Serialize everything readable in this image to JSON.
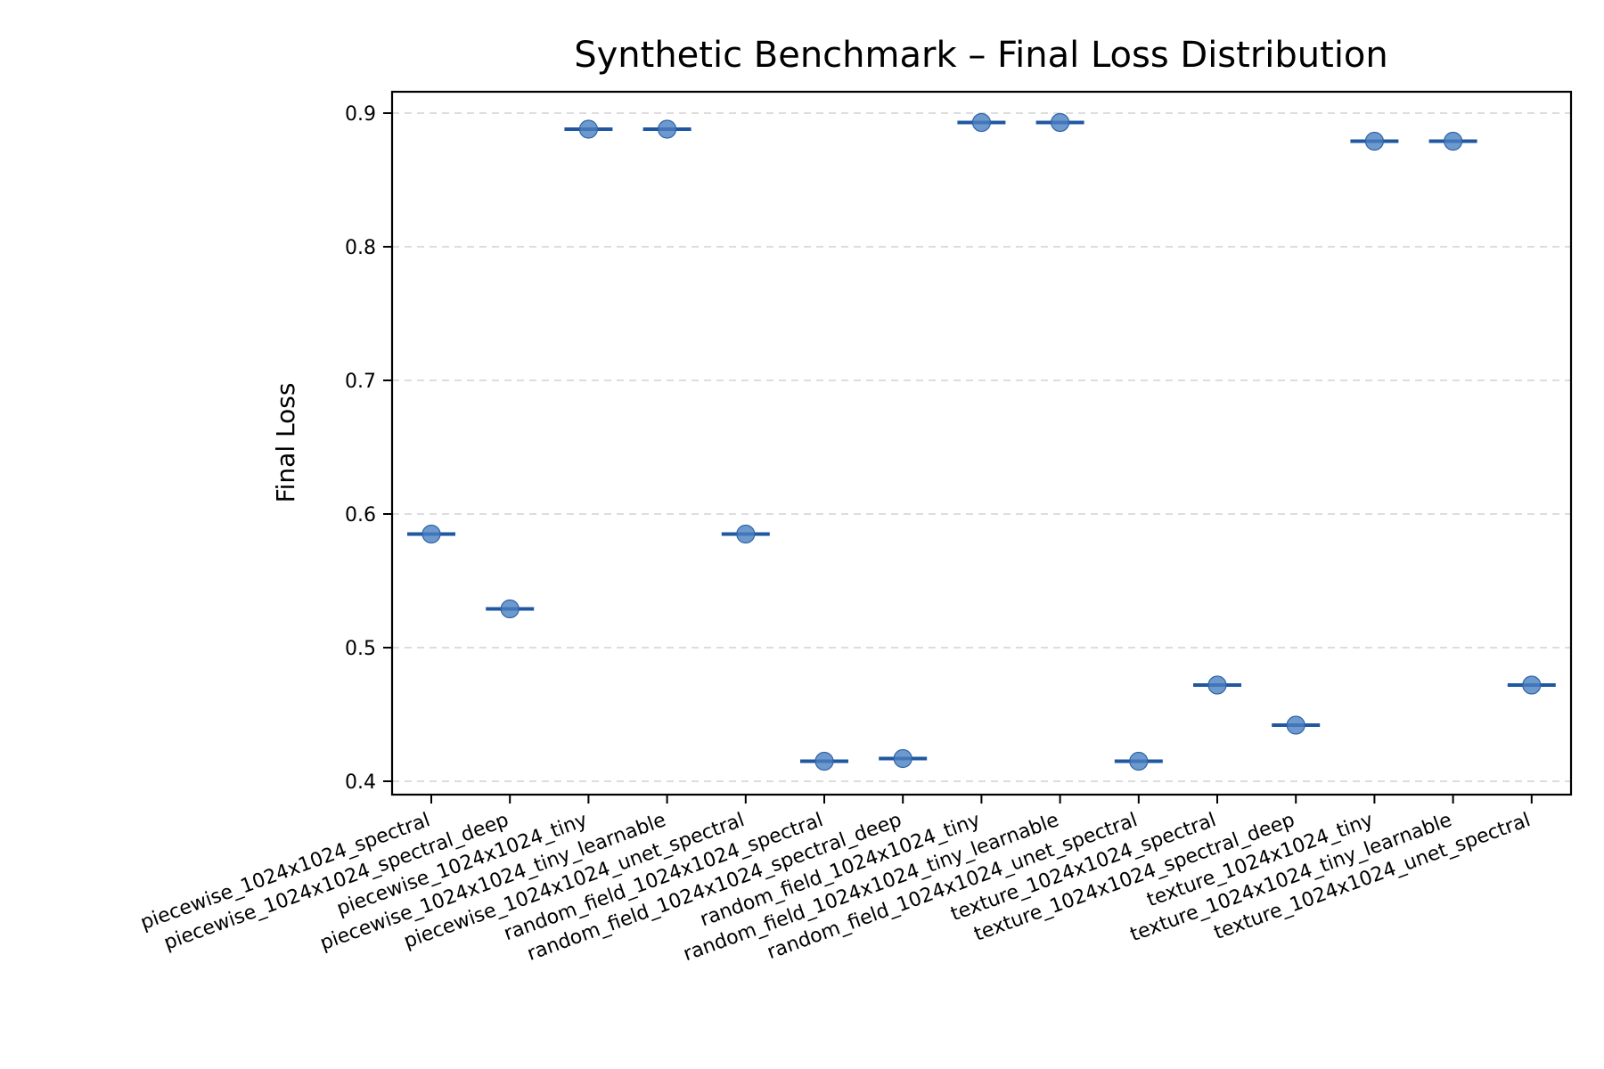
{
  "chart_data": {
    "type": "scatter",
    "title": "Synthetic Benchmark – Final Loss Distribution",
    "xlabel": "",
    "ylabel": "Final Loss",
    "ylim": [
      0.39,
      0.916
    ],
    "yticks": [
      0.4,
      0.5,
      0.6,
      0.7,
      0.8,
      0.9
    ],
    "grid": "horizontal-dashed",
    "colors": {
      "point": "#4a7fc1",
      "median": "#1f57a0",
      "grid": "#dddddd"
    },
    "categories": [
      "piecewise_1024x1024_spectral",
      "piecewise_1024x1024_spectral_deep",
      "piecewise_1024x1024_tiny",
      "piecewise_1024x1024_tiny_learnable",
      "piecewise_1024x1024_unet_spectral",
      "random_field_1024x1024_spectral",
      "random_field_1024x1024_spectral_deep",
      "random_field_1024x1024_tiny",
      "random_field_1024x1024_tiny_learnable",
      "random_field_1024x1024_unet_spectral",
      "texture_1024x1024_spectral",
      "texture_1024x1024_spectral_deep",
      "texture_1024x1024_tiny",
      "texture_1024x1024_tiny_learnable",
      "texture_1024x1024_unet_spectral"
    ],
    "series": [
      {
        "values": [
          0.585,
          0.529,
          0.888,
          0.888,
          0.585,
          0.415,
          0.417,
          0.893,
          0.893,
          0.415,
          0.472,
          0.442,
          0.879,
          0.879,
          0.472
        ]
      }
    ]
  }
}
